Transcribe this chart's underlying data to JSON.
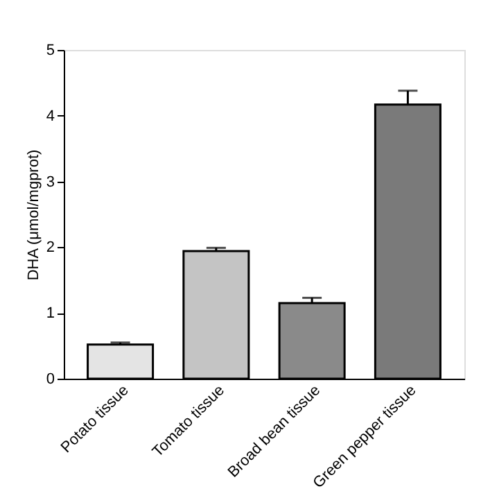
{
  "chart_data": {
    "type": "bar",
    "ylabel": "DHA (μmol/mgprot)",
    "categories": [
      "Potato tissue",
      "Tomato tissue",
      "Broad bean tissue",
      "Green pepper tissue"
    ],
    "values": [
      0.52,
      1.94,
      1.15,
      4.17
    ],
    "errors": [
      [
        0.52,
        0.55
      ],
      [
        1.94,
        1.99
      ],
      [
        1.15,
        1.23
      ],
      [
        4.17,
        4.38
      ]
    ],
    "colors": [
      "#e4e4e4",
      "#c4c4c4",
      "#8a8a8a",
      "#7a7a7a"
    ],
    "ylim": [
      0,
      5
    ],
    "yticks": [
      0,
      1,
      2,
      3,
      4,
      5
    ],
    "grid": false
  }
}
